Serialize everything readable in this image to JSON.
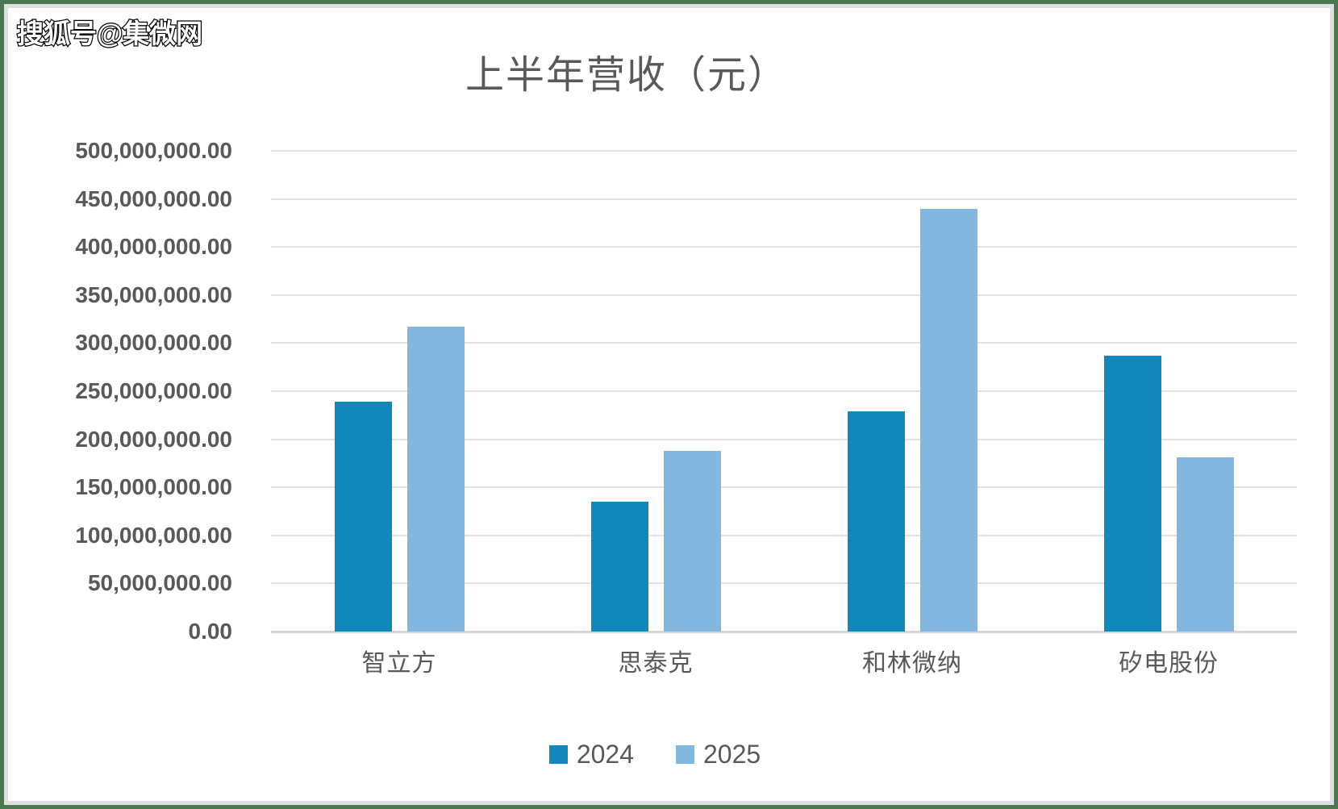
{
  "watermark": "搜狐号@集微网",
  "chart_data": {
    "type": "bar",
    "title": "上半年营收（元）",
    "categories": [
      "智立方",
      "思泰克",
      "和林微纳",
      "矽电股份"
    ],
    "series": [
      {
        "name": "2024",
        "color": "#1187BC",
        "values": [
          239000000,
          135000000,
          229000000,
          287000000
        ]
      },
      {
        "name": "2025",
        "color": "#82B8DF",
        "values": [
          317000000,
          188000000,
          440000000,
          181000000
        ]
      }
    ],
    "ylim": [
      0,
      500000000
    ],
    "ytick_step": 50000000,
    "ytick_labels_top_to_bottom": [
      "500,000,000.00",
      "450,000,000.00",
      "400,000,000.00",
      "350,000,000.00",
      "300,000,000.00",
      "250,000,000.00",
      "200,000,000.00",
      "150,000,000.00",
      "100,000,000.00",
      "50,000,000.00",
      "0.00"
    ],
    "grid": true,
    "legend_position": "bottom",
    "xlabel": "",
    "ylabel": ""
  },
  "colors": {
    "title_text": "#595959",
    "axis_text": "#595959",
    "gridline": "#E2E2E2",
    "axis_line": "#D6D6D6",
    "frame_green": "#4A7652",
    "frame_gray": "#DFDFDF",
    "series_2024": "#1187BC",
    "series_2025": "#82B8DF"
  }
}
